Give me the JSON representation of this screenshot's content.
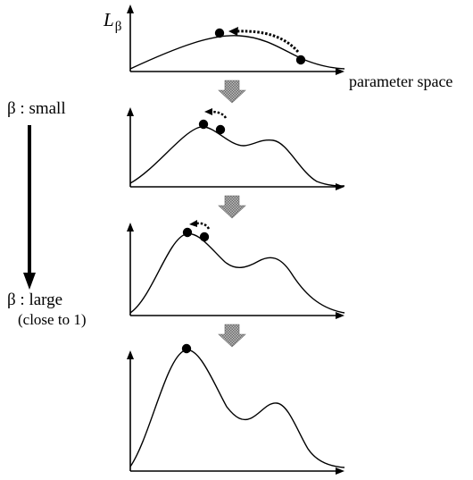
{
  "diagram": {
    "y_axis_label": "L",
    "y_axis_subscript": "β",
    "x_axis_label": "parameter space",
    "beta_small_label": "β : small",
    "beta_large_label": "β : large",
    "beta_large_note": "(close to 1)",
    "panels": [
      {
        "id": "panel-1",
        "peaks": 1,
        "start_point": "right-tail",
        "end_point": "top"
      },
      {
        "id": "panel-2",
        "peaks": 2,
        "start_point": "near-peak",
        "end_point": "peak"
      },
      {
        "id": "panel-3",
        "peaks": 2,
        "start_point": "near-peak",
        "end_point": "peak"
      },
      {
        "id": "panel-4",
        "peaks": 2,
        "start_point": "peak",
        "end_point": "peak"
      }
    ],
    "colors": {
      "ink": "#000000",
      "arrow_fill": "#9a9a9a",
      "arrow_stroke": "#555555"
    }
  }
}
